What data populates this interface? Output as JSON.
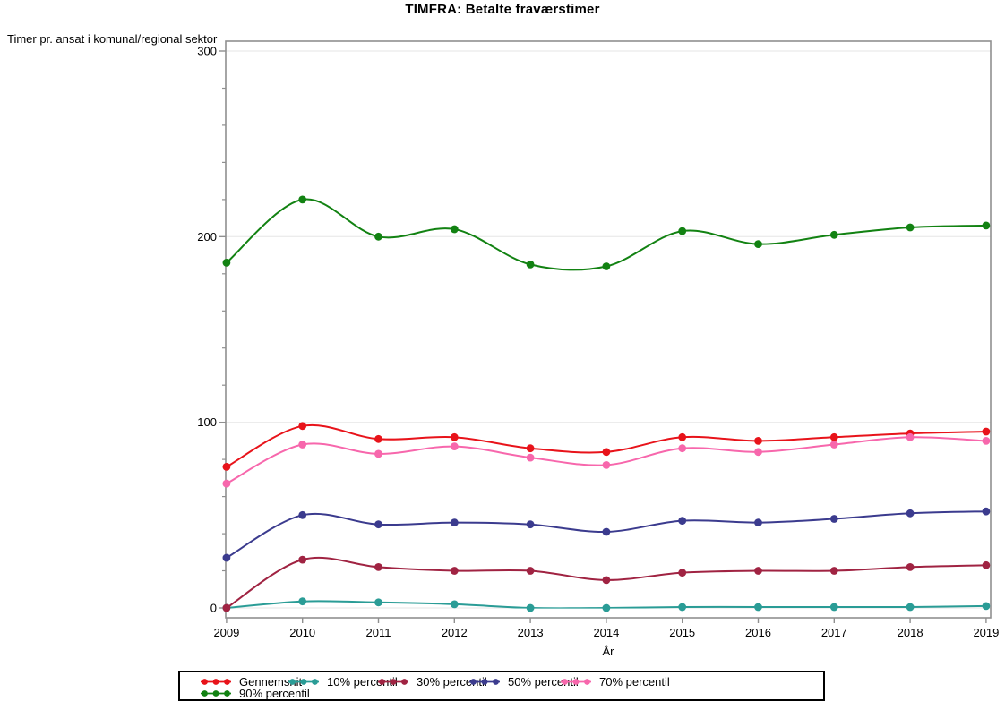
{
  "chart_data": {
    "type": "line",
    "title": "TIMFRA: Betalte fraværstimer",
    "ylabel": "Timer pr. ansat i komunal/regional sektor",
    "xlabel": "År",
    "x": [
      2009,
      2010,
      2011,
      2012,
      2013,
      2014,
      2015,
      2016,
      2017,
      2018,
      2019
    ],
    "ylim": [
      0,
      300
    ],
    "y_ticks": [
      0,
      100,
      200,
      300
    ],
    "y_minor_tick_step": 20,
    "grid": true,
    "interpolation": "smooth-spline",
    "legend_position": "bottom-left-box",
    "frame_color": "#8f8f8f",
    "gridline_color": "#e6e6e6",
    "series": [
      {
        "name": "Gennemsnit",
        "color": "#e8131a",
        "values": [
          76,
          98,
          91,
          92,
          86,
          84,
          92,
          90,
          92,
          94,
          95
        ]
      },
      {
        "name": "10% percentil",
        "color": "#2a9c96",
        "values": [
          0,
          3.5,
          3,
          2,
          0,
          0,
          0.5,
          0.5,
          0.5,
          0.5,
          1
        ]
      },
      {
        "name": "30% percentil",
        "color": "#a02342",
        "values": [
          0,
          26,
          22,
          20,
          20,
          15,
          19,
          20,
          20,
          22,
          23
        ]
      },
      {
        "name": "50% percentil",
        "color": "#3b3b8e",
        "values": [
          27,
          50,
          45,
          46,
          45,
          41,
          47,
          46,
          48,
          51,
          52
        ]
      },
      {
        "name": "70% percentil",
        "color": "#f767ac",
        "values": [
          67,
          88,
          83,
          87,
          81,
          77,
          86,
          84,
          88,
          92,
          90
        ]
      },
      {
        "name": "90% percentil",
        "color": "#128212",
        "values": [
          186,
          220,
          200,
          204,
          185,
          184,
          203,
          196,
          201,
          205,
          206
        ]
      }
    ]
  }
}
